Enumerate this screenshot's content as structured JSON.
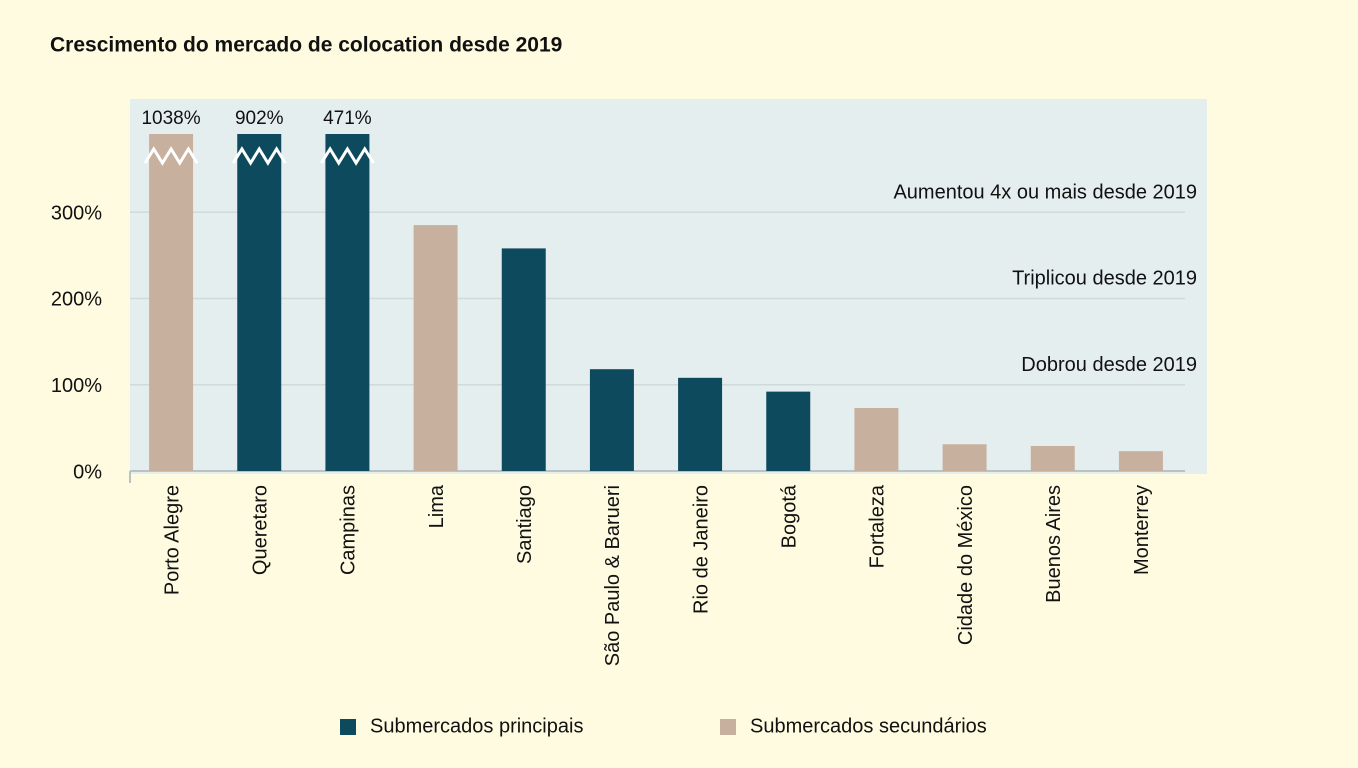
{
  "chart_data": {
    "type": "bar",
    "title": "Crescimento do mercado de colocation desde 2019",
    "categories": [
      "Porto Alegre",
      "Queretaro",
      "Campinas",
      "Lima",
      "Santiago",
      "São Paulo & Barueri",
      "Rio de Janeiro",
      "Bogotá",
      "Fortaleza",
      "Cidade do México",
      "Buenos Aires",
      "Monterrey"
    ],
    "values": [
      1038,
      902,
      471,
      285,
      258,
      118,
      108,
      92,
      73,
      31,
      29,
      23
    ],
    "value_labels": [
      "1038%",
      "902%",
      "471%",
      null,
      null,
      null,
      null,
      null,
      null,
      null,
      null,
      null
    ],
    "colors": [
      "#c8b09e",
      "#0e4a5e",
      "#0e4a5e",
      "#c8b09e",
      "#0e4a5e",
      "#0e4a5e",
      "#0e4a5e",
      "#0e4a5e",
      "#c8b09e",
      "#c8b09e",
      "#c8b09e",
      "#c8b09e"
    ],
    "legend": [
      {
        "name": "Submercados principais",
        "color": "#0e4a5e"
      },
      {
        "name": "Submercados secundários",
        "color": "#c8b09e"
      }
    ],
    "ylim": [
      0,
      430
    ],
    "yticks": [
      {
        "value": 0,
        "label": "0%"
      },
      {
        "value": 100,
        "label": "100%"
      },
      {
        "value": 200,
        "label": "200%"
      },
      {
        "value": 300,
        "label": "300%"
      }
    ],
    "axis_break": true,
    "grid": true,
    "annotations": [
      "Aumentou 4x ou mais desde 2019",
      "Triplicou desde 2019",
      "Dobrou desde 2019"
    ]
  }
}
